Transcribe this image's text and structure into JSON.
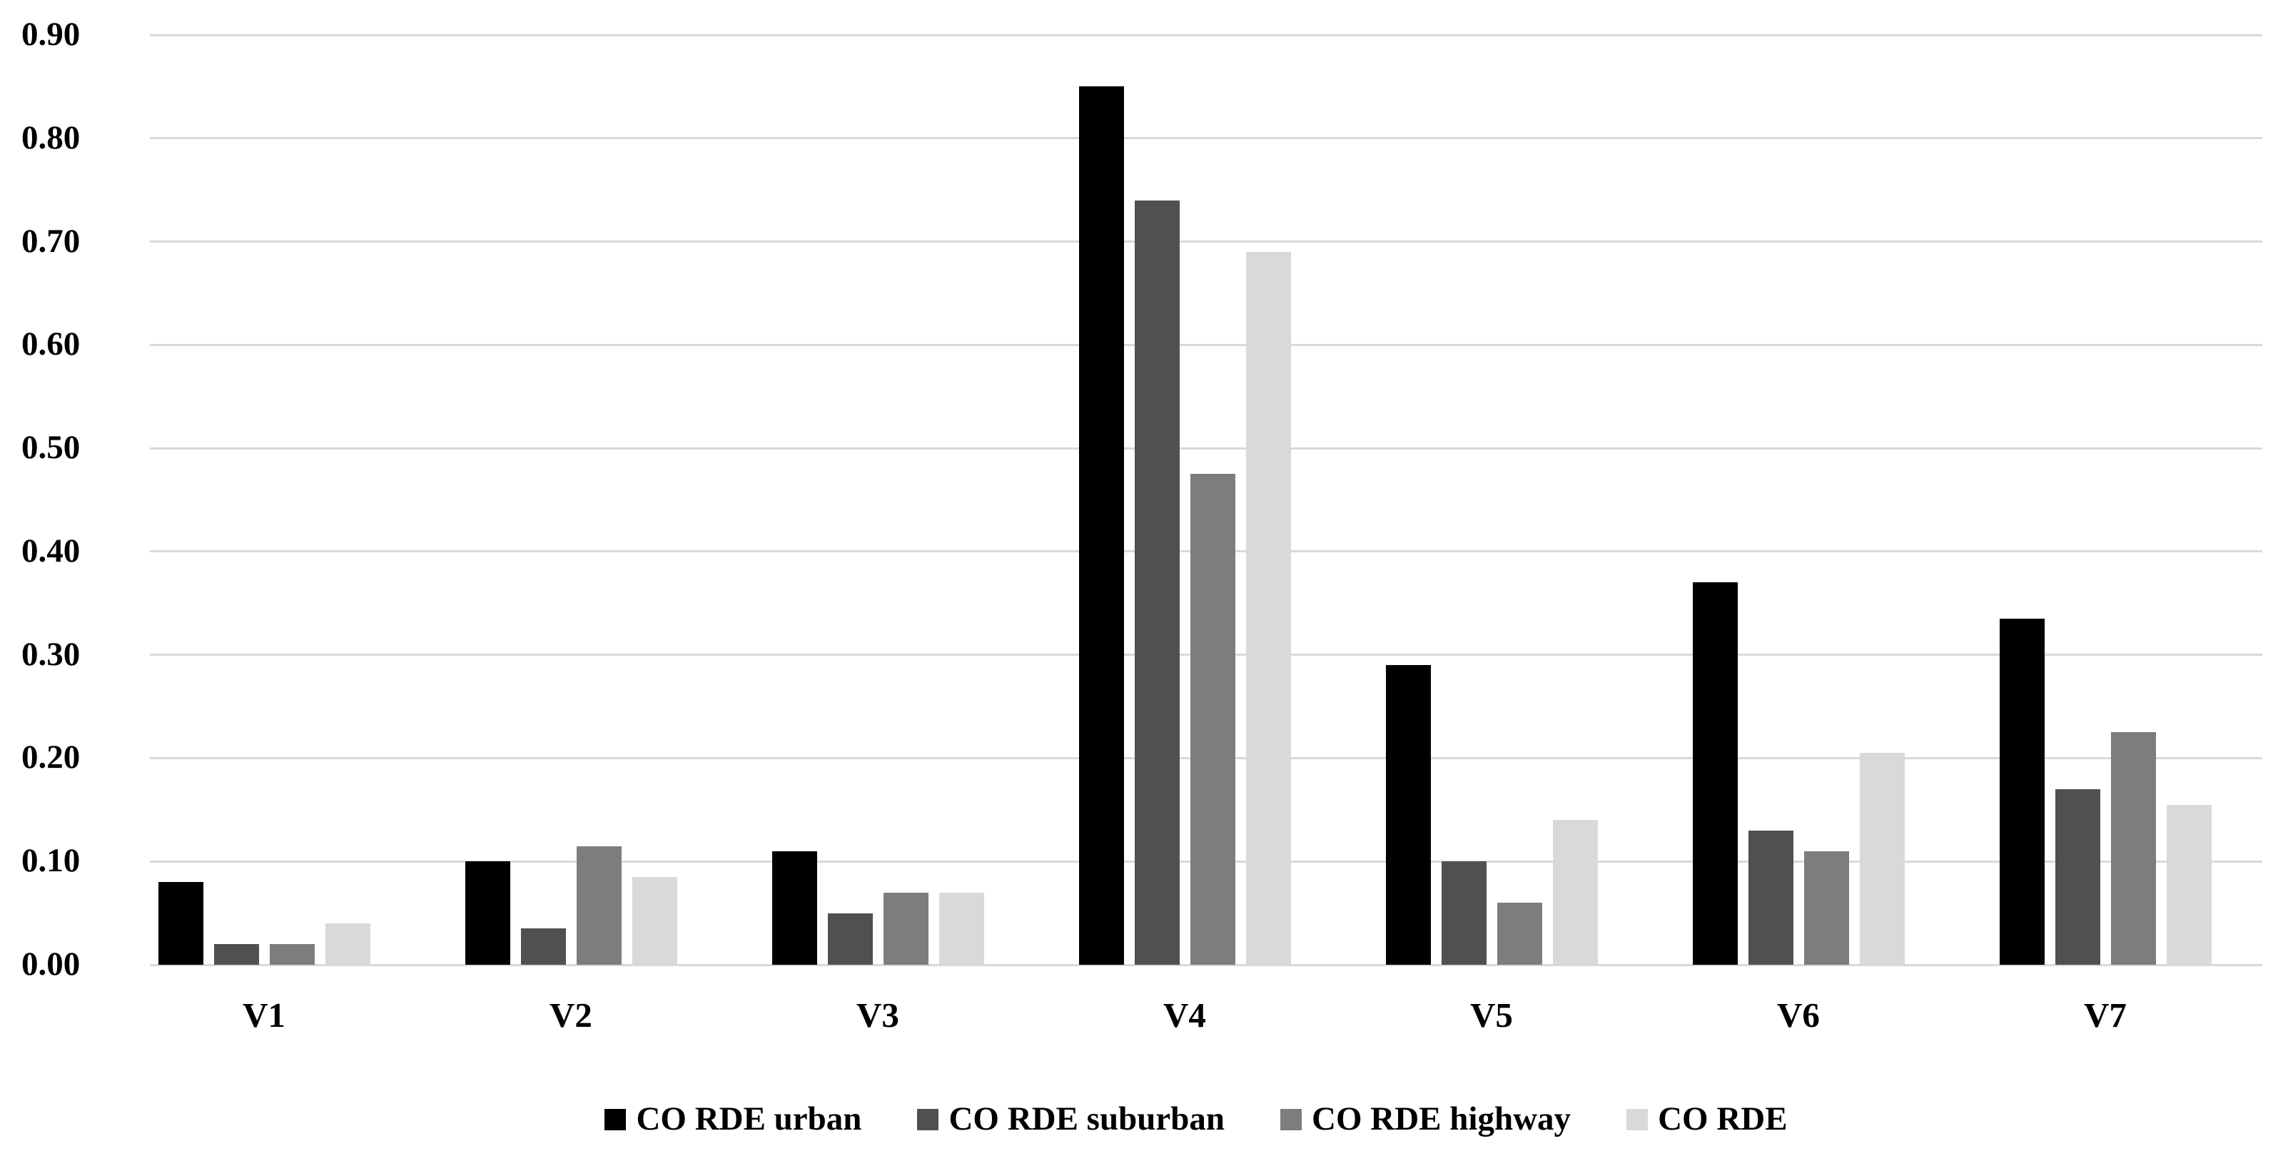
{
  "chart_data": {
    "type": "bar",
    "title": "",
    "xlabel": "",
    "ylabel": "",
    "categories": [
      "V1",
      "V2",
      "V3",
      "V4",
      "V5",
      "V6",
      "V7"
    ],
    "series": [
      {
        "name": "CO RDE urban",
        "color": "#000000",
        "values": [
          0.08,
          0.1,
          0.11,
          0.85,
          0.29,
          0.37,
          0.335
        ]
      },
      {
        "name": "CO RDE suburban",
        "color": "#505050",
        "values": [
          0.02,
          0.035,
          0.05,
          0.74,
          0.1,
          0.13,
          0.17
        ]
      },
      {
        "name": "CO RDE highway",
        "color": "#7d7d7d",
        "values": [
          0.02,
          0.115,
          0.07,
          0.475,
          0.06,
          0.11,
          0.225
        ]
      },
      {
        "name": "CO RDE",
        "color": "#d9d9d9",
        "values": [
          0.04,
          0.085,
          0.07,
          0.69,
          0.14,
          0.205,
          0.155
        ]
      }
    ],
    "y_axis": {
      "min": 0.0,
      "max": 0.9,
      "step": 0.1,
      "tick_labels": [
        "0.00",
        "0.10",
        "0.20",
        "0.30",
        "0.40",
        "0.50",
        "0.60",
        "0.70",
        "0.80",
        "0.90"
      ]
    },
    "grid": true,
    "gridline_color": "#d9d9d9",
    "legend_position": "bottom"
  }
}
